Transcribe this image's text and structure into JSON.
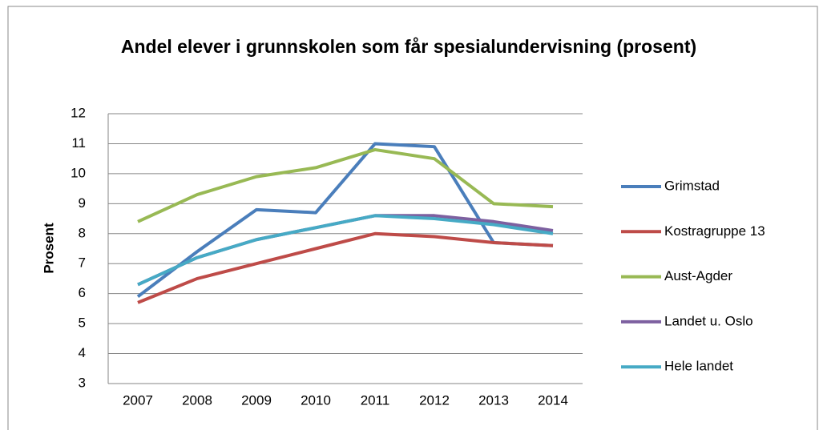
{
  "chart_data": {
    "type": "line",
    "title": "Andel elever i grunnskolen som får spesialundervisning (prosent)",
    "y_label": "Prosent",
    "categories": [
      "2007",
      "2008",
      "2009",
      "2010",
      "2011",
      "2012",
      "2013",
      "2014"
    ],
    "series": [
      {
        "name": "Grimstad",
        "color": "#4a7ebb",
        "values": [
          5.9,
          7.4,
          8.8,
          8.7,
          11.0,
          10.9,
          7.7,
          7.6
        ]
      },
      {
        "name": "Kostragruppe 13",
        "color": "#be4b48",
        "values": [
          5.7,
          6.5,
          7.0,
          7.5,
          8.0,
          7.9,
          7.7,
          7.6
        ]
      },
      {
        "name": "Aust-Agder",
        "color": "#98b954",
        "values": [
          8.4,
          9.3,
          9.9,
          10.2,
          10.8,
          10.5,
          9.0,
          8.9
        ]
      },
      {
        "name": "Landet u. Oslo",
        "color": "#7d60a0",
        "values": [
          6.3,
          7.2,
          7.8,
          8.2,
          8.6,
          8.6,
          8.4,
          8.1
        ]
      },
      {
        "name": "Hele landet",
        "color": "#46aac5",
        "values": [
          6.3,
          7.2,
          7.8,
          8.2,
          8.6,
          8.5,
          8.3,
          8.0
        ]
      }
    ],
    "ylim": [
      3,
      12
    ],
    "yticks": [
      3,
      4,
      5,
      6,
      7,
      8,
      9,
      10,
      11,
      12
    ],
    "grid": true,
    "legend": "right"
  }
}
